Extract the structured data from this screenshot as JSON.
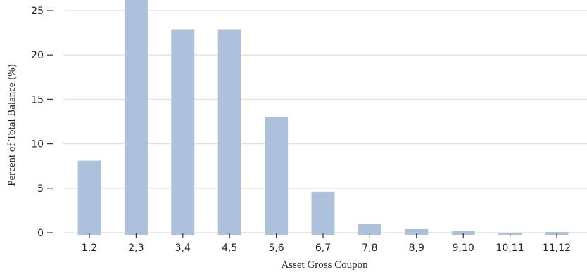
{
  "chart_data": {
    "type": "bar",
    "title": "",
    "xlabel": "Asset Gross Coupon",
    "ylabel": "Percent of Total Balance (%)",
    "categories": [
      "1,2",
      "2,3",
      "3,4",
      "4,5",
      "5,6",
      "6,7",
      "7,8",
      "8,9",
      "9,10",
      "10,11",
      "11,12"
    ],
    "values": [
      8.1,
      26.6,
      22.9,
      22.9,
      13.0,
      4.6,
      0.95,
      0.4,
      0.2,
      0.0,
      0.08
    ],
    "yticks": [
      0,
      5,
      10,
      15,
      20,
      25
    ],
    "ylim": [
      -0.3,
      26.3
    ],
    "grid": true,
    "colors": {
      "bar": "#adc1dc"
    }
  }
}
